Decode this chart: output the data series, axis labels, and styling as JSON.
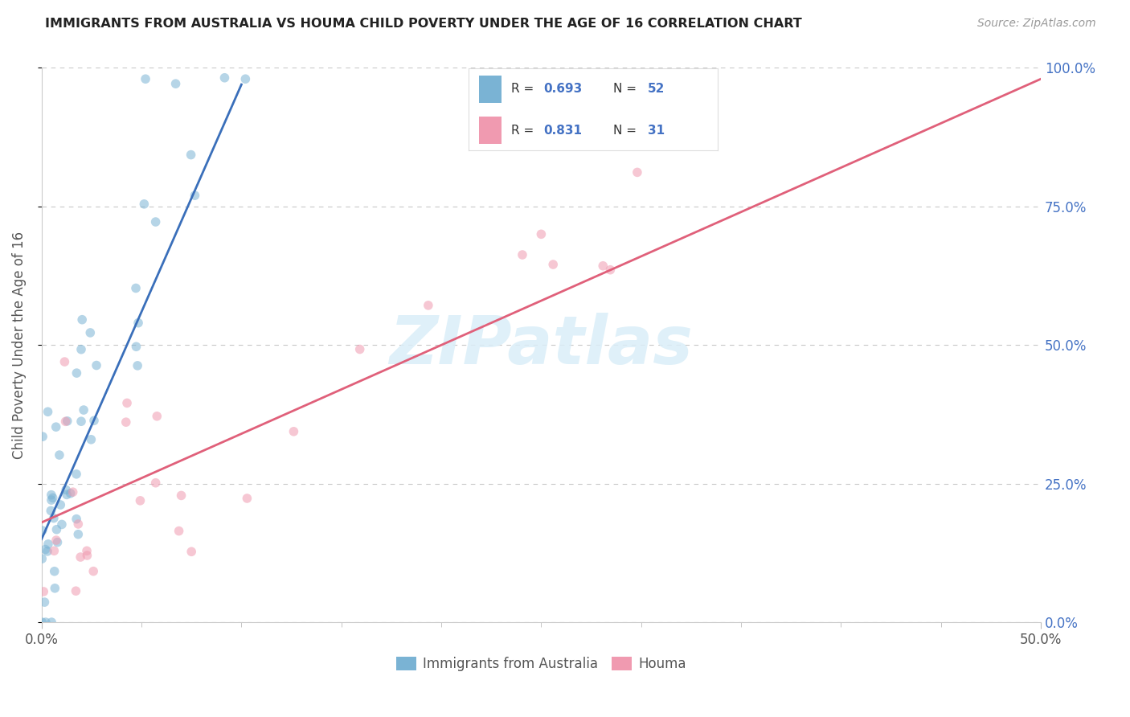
{
  "title": "IMMIGRANTS FROM AUSTRALIA VS HOUMA CHILD POVERTY UNDER THE AGE OF 16 CORRELATION CHART",
  "source": "Source: ZipAtlas.com",
  "ylabel": "Child Poverty Under the Age of 16",
  "yticks_labels": [
    "100.0%",
    "75.0%",
    "50.0%",
    "25.0%",
    "0.0%"
  ],
  "ytick_vals": [
    100,
    75,
    50,
    25,
    0
  ],
  "xlim": [
    0,
    50
  ],
  "ylim": [
    0,
    100
  ],
  "blue_color": "#7ab3d4",
  "pink_color": "#f09ab0",
  "blue_line_color": "#3a6fba",
  "pink_line_color": "#e0607a",
  "blue_R": 0.693,
  "blue_N": 52,
  "pink_R": 0.831,
  "pink_N": 31,
  "bg_color": "#ffffff",
  "grid_color": "#c8c8c8",
  "watermark": "ZIPatlas",
  "watermark_color": "#daeef8",
  "blue_label": "Immigrants from Australia",
  "pink_label": "Houma",
  "blue_line_x0": 0,
  "blue_line_y0": 15,
  "blue_line_x1": 10,
  "blue_line_y1": 97,
  "pink_line_x0": 0,
  "pink_line_y0": 18,
  "pink_line_x1": 50,
  "pink_line_y1": 98
}
